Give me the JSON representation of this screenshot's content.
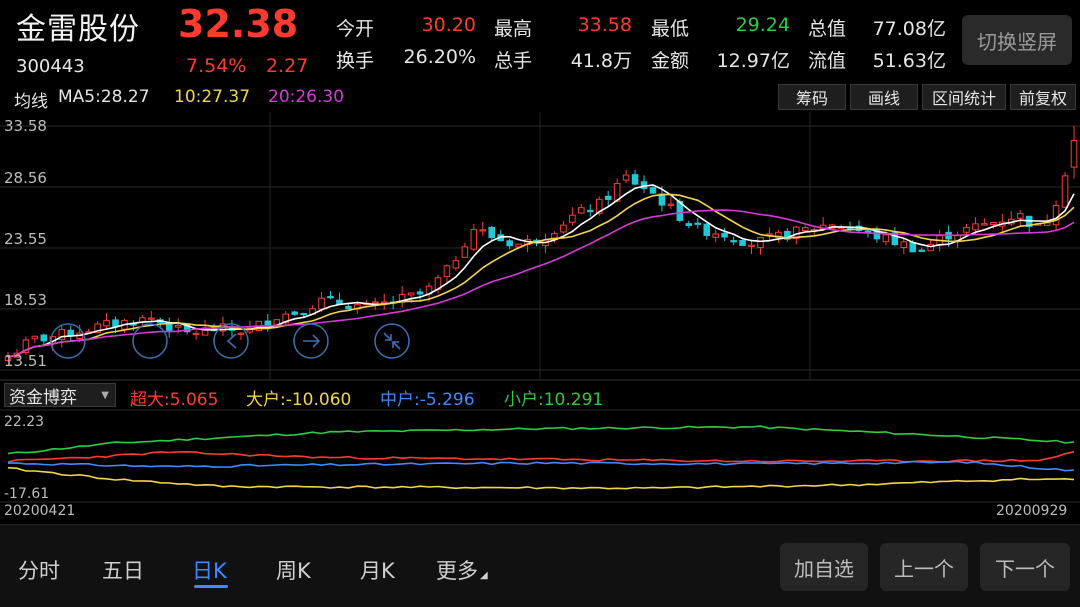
{
  "header": {
    "name": "金雷股份",
    "price": "32.38",
    "code": "300443",
    "change_pct": "7.54%",
    "change_amt": "2.27",
    "quotes": [
      {
        "label": "今开",
        "value": "30.20",
        "color": "#ff3b30"
      },
      {
        "label": "最高",
        "value": "33.58",
        "color": "#ff3b30"
      },
      {
        "label": "最低",
        "value": "29.24",
        "color": "#2ecc40"
      },
      {
        "label": "总值",
        "value": "77.08亿",
        "color": "#e6e6e6"
      },
      {
        "label": "换手",
        "value": "26.20%",
        "color": "#e6e6e6"
      },
      {
        "label": "总手",
        "value": "41.8万",
        "color": "#e6e6e6"
      },
      {
        "label": "金额",
        "value": "12.97亿",
        "color": "#e6e6e6"
      },
      {
        "label": "流值",
        "value": "51.63亿",
        "color": "#e6e6e6"
      }
    ],
    "switch_label": "切换竖屏"
  },
  "ma_bar": {
    "title": "均线",
    "ma5": "MA5:28.27",
    "ma10": "10:27.37",
    "ma20": "20:26.30",
    "buttons": [
      "筹码",
      "画线",
      "区间统计",
      "前复权"
    ]
  },
  "colors": {
    "up": "#ff3b30",
    "down": "#22c7d6",
    "ma5": "#ffffff",
    "ma10": "#f2d54a",
    "ma20": "#d63ad6",
    "super": "#ff3b30",
    "large": "#f2d54a",
    "medium": "#3d8bff",
    "small": "#2ecc40"
  },
  "chart_data": {
    "type": "candlestick",
    "y_labels": [
      "33.58",
      "28.56",
      "23.55",
      "18.53",
      "13.51"
    ],
    "ylim": [
      13.51,
      33.58
    ],
    "x_start": "20200421",
    "x_end": "20200929",
    "ma5_last": 28.27,
    "ma10_last": 27.37,
    "ma20_last": 26.3
  },
  "flow_panel": {
    "selector": "资金博弈",
    "super": "超大:5.065",
    "large": "大户:-10.060",
    "medium": "中户:-5.296",
    "small": "小户:10.291",
    "y_top": "22.23",
    "y_bottom": "-17.61",
    "ylim": [
      -17.61,
      22.23
    ],
    "date_start": "20200421",
    "date_end": "20200929"
  },
  "bottom_nav": {
    "periods": [
      "分时",
      "五日",
      "日K",
      "周K",
      "月K",
      "更多"
    ],
    "active": "日K",
    "buttons": [
      "加自选",
      "上一个",
      "下一个"
    ]
  }
}
